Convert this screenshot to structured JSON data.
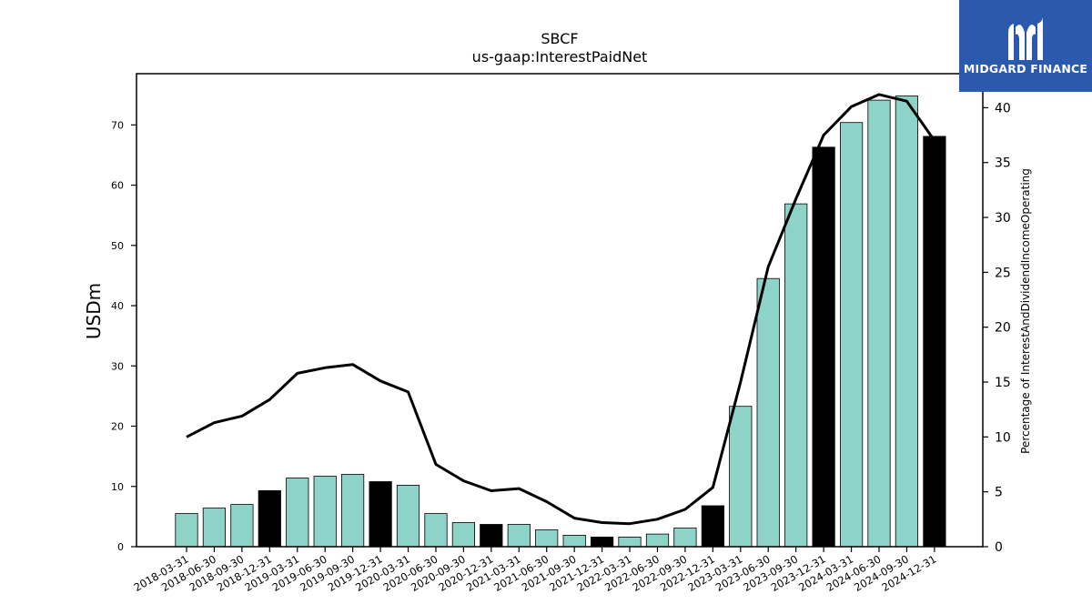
{
  "logo": {
    "text": "MIDGARD FINANCE",
    "icon": "midgard-m-icon",
    "background": "#2b5aad"
  },
  "colors": {
    "bar_normal": "#8dd3c7",
    "bar_year_end": "#000000",
    "line": "#000000"
  },
  "chart_data": {
    "type": "bar",
    "title": "SBCF",
    "subtitle": "us-gaap:InterestPaidNet",
    "ylabel": "USDm",
    "y2label": "Percentage of InterestAndDividendIncomeOperating",
    "ylim": [
      0,
      78.5
    ],
    "y2lim": [
      0,
      43.1
    ],
    "yticks": [
      0,
      10,
      20,
      30,
      40,
      50,
      60,
      70
    ],
    "y2ticks": [
      0,
      5,
      10,
      15,
      20,
      25,
      30,
      35,
      40
    ],
    "grid": false,
    "categories": [
      "2018-03-31",
      "2018-06-30",
      "2018-09-30",
      "2018-12-31",
      "2019-03-31",
      "2019-06-30",
      "2019-09-30",
      "2019-12-31",
      "2020-03-31",
      "2020-06-30",
      "2020-09-30",
      "2020-12-31",
      "2021-03-31",
      "2021-06-30",
      "2021-09-30",
      "2021-12-31",
      "2022-03-31",
      "2022-06-30",
      "2022-09-30",
      "2022-12-31",
      "2023-03-31",
      "2023-06-30",
      "2023-09-30",
      "2023-12-31",
      "2024-03-31",
      "2024-06-30",
      "2024-09-30",
      "2024-12-31"
    ],
    "series": [
      {
        "type": "bar",
        "axis": "left",
        "values": [
          5.5,
          6.4,
          7.0,
          9.3,
          11.4,
          11.7,
          12.0,
          10.8,
          10.2,
          5.5,
          4.0,
          3.7,
          3.7,
          2.8,
          1.9,
          1.6,
          1.6,
          2.1,
          3.1,
          6.8,
          23.3,
          44.5,
          56.9,
          66.3,
          70.4,
          74.1,
          74.8,
          68.1
        ]
      },
      {
        "type": "line",
        "axis": "right",
        "values": [
          10.0,
          11.3,
          11.9,
          13.4,
          15.8,
          16.3,
          16.6,
          15.1,
          14.1,
          7.5,
          6.0,
          5.1,
          5.3,
          4.1,
          2.6,
          2.2,
          2.1,
          2.5,
          3.4,
          5.4,
          15.0,
          25.5,
          31.7,
          37.5,
          40.1,
          41.2,
          40.6,
          37.0
        ]
      }
    ]
  }
}
